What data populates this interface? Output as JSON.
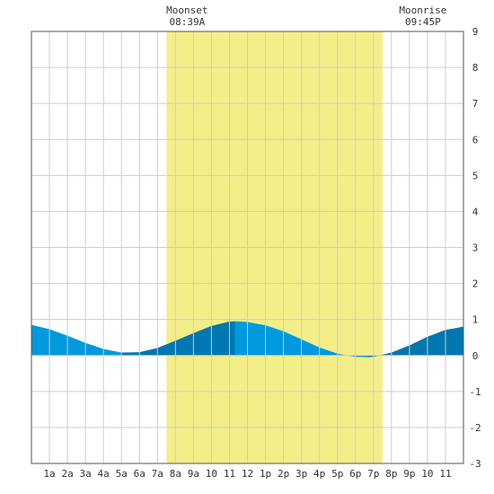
{
  "chart_data": {
    "type": "area",
    "title": "",
    "xlabel": "",
    "ylabel": "",
    "x_ticks": [
      "1a",
      "2a",
      "3a",
      "4a",
      "5a",
      "6a",
      "7a",
      "8a",
      "9a",
      "10",
      "11",
      "12",
      "1p",
      "2p",
      "3p",
      "4p",
      "5p",
      "6p",
      "7p",
      "8p",
      "9p",
      "10",
      "11"
    ],
    "xlim": [
      0,
      24
    ],
    "ylim": [
      -3,
      9
    ],
    "y_ticks": [
      -3,
      -2,
      -1,
      0,
      1,
      2,
      3,
      4,
      5,
      6,
      7,
      8,
      9
    ],
    "grid": true,
    "daylight": {
      "start_hour": 7.5,
      "end_hour": 19.5,
      "color": "#f4ee88"
    },
    "moon_events": [
      {
        "label": "Moonset",
        "time": "08:39A",
        "hour": 8.65
      },
      {
        "label": "Moonrise",
        "time": "09:45P",
        "hour": 21.75
      }
    ],
    "series": [
      {
        "x": [
          0,
          1,
          2,
          3,
          4,
          5,
          6,
          7,
          8,
          9,
          10,
          11,
          11.3,
          12,
          13,
          14,
          15,
          16,
          17,
          18,
          18.7,
          19,
          20,
          21,
          22,
          23,
          24
        ],
        "y": [
          0.85,
          0.73,
          0.55,
          0.35,
          0.18,
          0.08,
          0.09,
          0.21,
          0.41,
          0.62,
          0.82,
          0.94,
          0.95,
          0.93,
          0.84,
          0.67,
          0.45,
          0.22,
          0.05,
          -0.04,
          -0.05,
          -0.04,
          0.08,
          0.28,
          0.52,
          0.71,
          0.8
        ]
      }
    ],
    "colors": {
      "tide_light": "#0099dd",
      "tide_dark": "#0077b0",
      "grid": "#cccccc",
      "border": "#555555"
    }
  }
}
